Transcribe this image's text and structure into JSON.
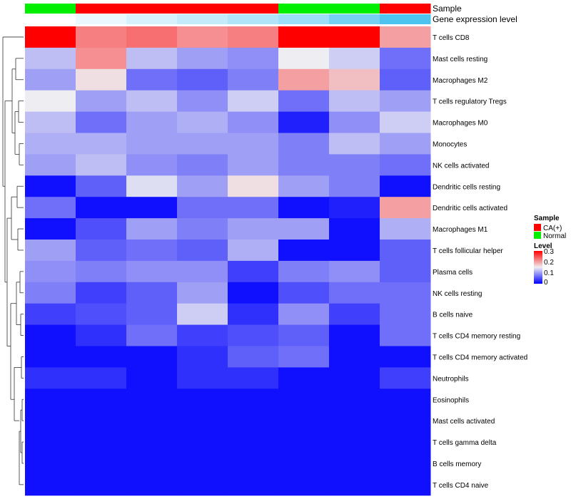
{
  "chart_data": {
    "type": "heatmap",
    "title": "",
    "annotation_tracks": [
      {
        "name": "Sample",
        "values": [
          "Normal",
          "CA(+)",
          "CA(+)",
          "CA(+)",
          "CA(+)",
          "Normal",
          "Normal",
          "CA(+)"
        ]
      },
      {
        "name": "Gene expression level",
        "values": [
          0.0,
          0.05,
          0.1,
          0.15,
          0.2,
          0.25,
          0.35,
          0.45
        ]
      }
    ],
    "rows": [
      "T cells CD8",
      "Mast cells resting",
      "Macrophages M2",
      "T cells regulatory  Tregs",
      "Macrophages M0",
      "Monocytes",
      "NK cells activated",
      "Dendritic cells resting",
      "Dendritic cells activated",
      "Macrophages M1",
      "T cells follicular helper",
      "Plasma cells",
      "NK cells resting",
      "B cells naive",
      "T cells CD4 memory resting",
      "T cells CD4 memory activated",
      "Neutrophils",
      "Eosinophils",
      "Mast cells activated",
      "T cells gamma delta",
      "B cells memory",
      "T cells CD4 naive"
    ],
    "values": [
      [
        0.3,
        0.22,
        0.23,
        0.21,
        0.22,
        0.3,
        0.3,
        0.2
      ],
      [
        0.12,
        0.21,
        0.12,
        0.1,
        0.09,
        0.15,
        0.13,
        0.07
      ],
      [
        0.1,
        0.16,
        0.07,
        0.06,
        0.08,
        0.2,
        0.18,
        0.06
      ],
      [
        0.15,
        0.1,
        0.12,
        0.09,
        0.13,
        0.07,
        0.12,
        0.1
      ],
      [
        0.12,
        0.07,
        0.1,
        0.11,
        0.09,
        0.02,
        0.09,
        0.13
      ],
      [
        0.11,
        0.11,
        0.1,
        0.1,
        0.1,
        0.08,
        0.12,
        0.1
      ],
      [
        0.1,
        0.12,
        0.09,
        0.08,
        0.1,
        0.08,
        0.08,
        0.07
      ],
      [
        0.01,
        0.06,
        0.14,
        0.1,
        0.16,
        0.1,
        0.08,
        0.01
      ],
      [
        0.07,
        0.01,
        0.01,
        0.07,
        0.07,
        0.01,
        0.02,
        0.2
      ],
      [
        0.01,
        0.05,
        0.1,
        0.08,
        0.1,
        0.1,
        0.01,
        0.11
      ],
      [
        0.1,
        0.06,
        0.07,
        0.06,
        0.11,
        0.01,
        0.01,
        0.06
      ],
      [
        0.09,
        0.08,
        0.09,
        0.09,
        0.04,
        0.08,
        0.09,
        0.06
      ],
      [
        0.08,
        0.04,
        0.06,
        0.1,
        0.01,
        0.05,
        0.07,
        0.07
      ],
      [
        0.04,
        0.05,
        0.06,
        0.13,
        0.03,
        0.09,
        0.04,
        0.07
      ],
      [
        0.01,
        0.03,
        0.07,
        0.04,
        0.05,
        0.06,
        0.01,
        0.07
      ],
      [
        0.01,
        0.01,
        0.01,
        0.03,
        0.06,
        0.07,
        0.01,
        0.01
      ],
      [
        0.03,
        0.03,
        0.01,
        0.03,
        0.03,
        0.01,
        0.01,
        0.04
      ],
      [
        0.01,
        0.01,
        0.01,
        0.01,
        0.01,
        0.01,
        0.01,
        0.01
      ],
      [
        0.01,
        0.01,
        0.01,
        0.01,
        0.01,
        0.01,
        0.01,
        0.01
      ],
      [
        0.01,
        0.01,
        0.01,
        0.01,
        0.01,
        0.01,
        0.01,
        0.01
      ],
      [
        0.01,
        0.01,
        0.01,
        0.01,
        0.01,
        0.01,
        0.01,
        0.01
      ],
      [
        0.01,
        0.01,
        0.01,
        0.01,
        0.01,
        0.01,
        0.01,
        0.01
      ]
    ],
    "color_scale": {
      "min": 0,
      "mid": 0.15,
      "max": 0.3,
      "low": "#0000ff",
      "midColor": "#eeeef2",
      "high": "#ff0000"
    },
    "legend": {
      "position": "right",
      "sample_title": "Sample",
      "sample_items": [
        {
          "label": "CA(+)",
          "color": "#ff0000"
        },
        {
          "label": "Normal",
          "color": "#00ee00"
        }
      ],
      "level_title": "Level",
      "level_ticks": [
        "0.3",
        "0.2",
        "0.1",
        "0"
      ]
    },
    "gene_expr_colors": {
      "low": "#ffffff",
      "high": "#4dc3f0"
    }
  }
}
